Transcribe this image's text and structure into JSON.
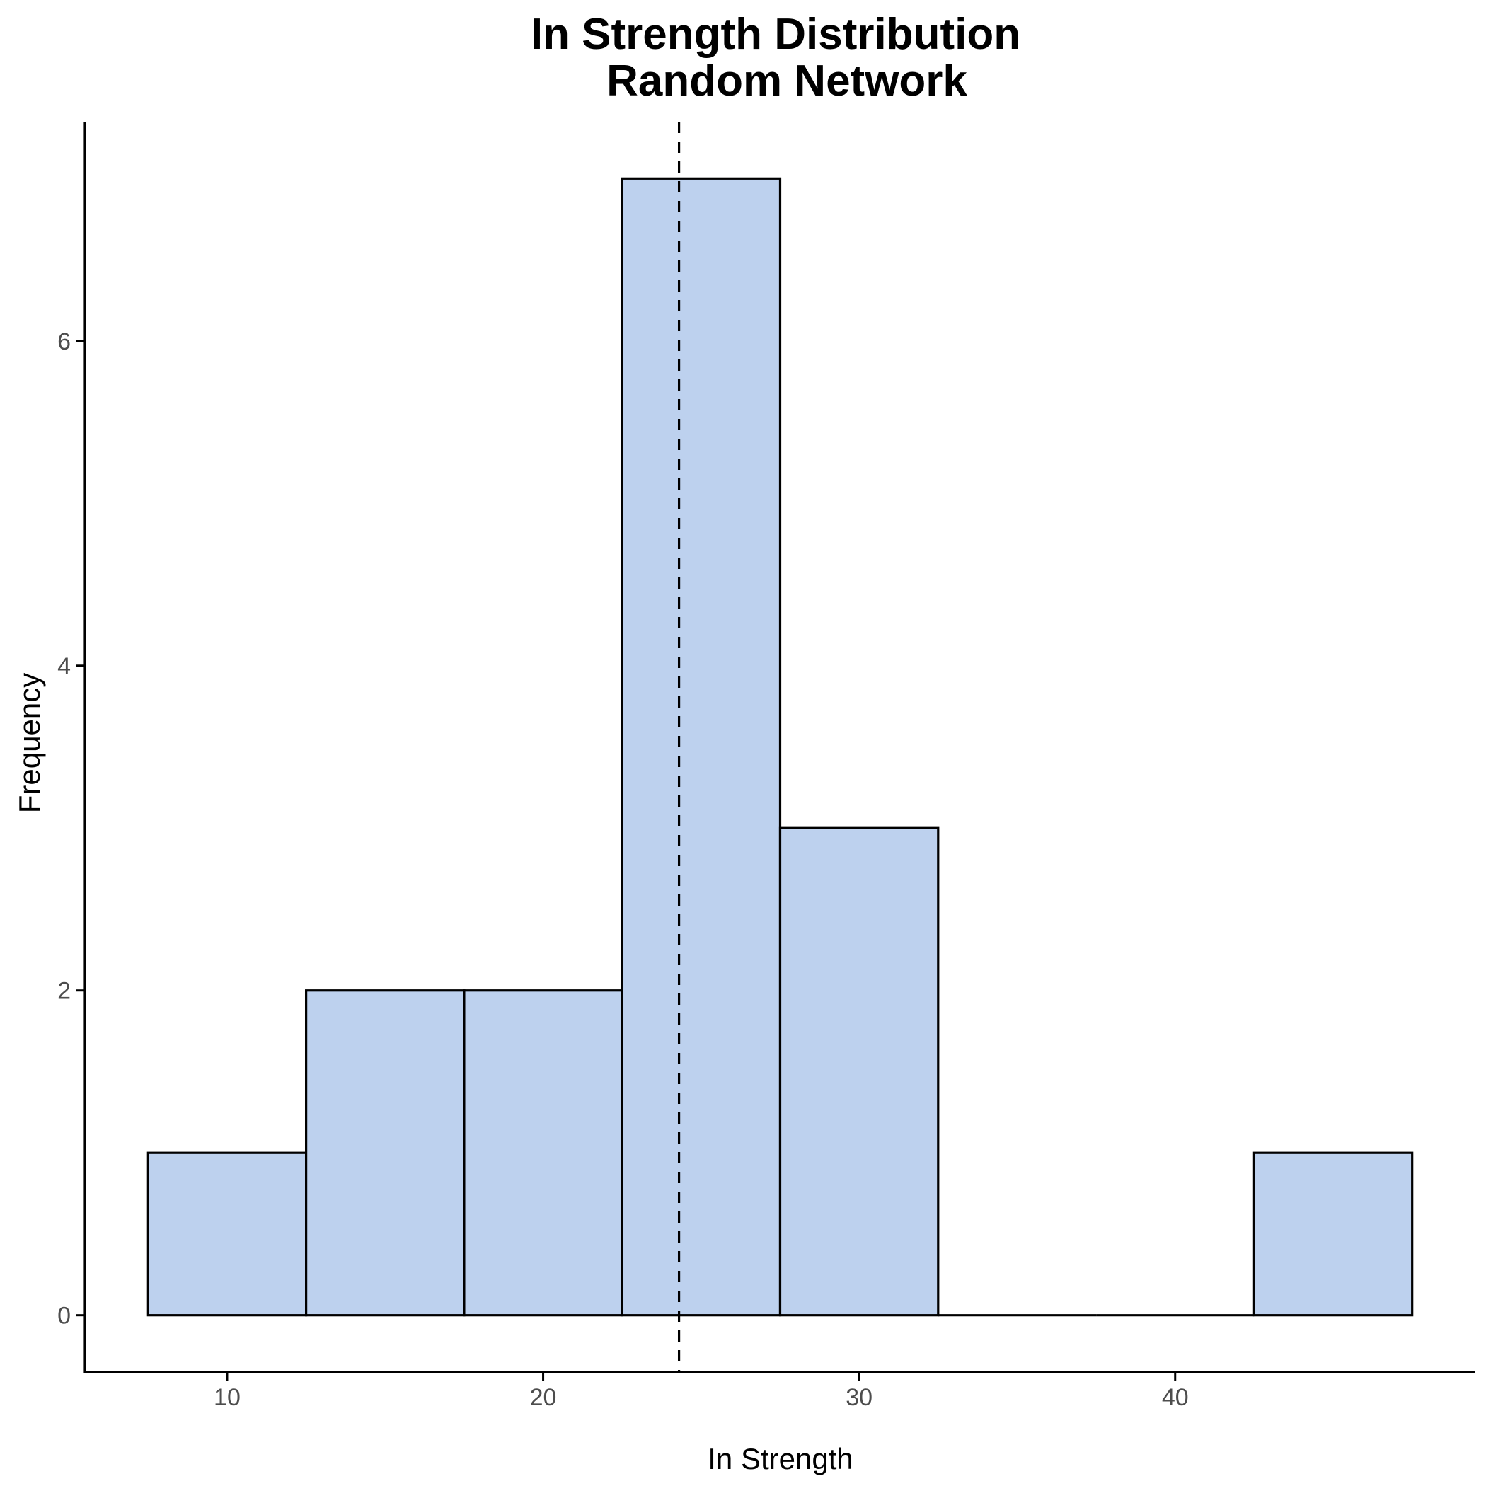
{
  "chart_data": {
    "type": "bar",
    "title_lines": [
      "In Strength Distribution",
      "Random Network"
    ],
    "xlabel": "In Strength",
    "ylabel": "Frequency",
    "bins": [
      {
        "x_start": 7.5,
        "x_end": 12.5,
        "count": 1
      },
      {
        "x_start": 12.5,
        "x_end": 17.5,
        "count": 2
      },
      {
        "x_start": 17.5,
        "x_end": 22.5,
        "count": 2
      },
      {
        "x_start": 22.5,
        "x_end": 27.5,
        "count": 7
      },
      {
        "x_start": 27.5,
        "x_end": 32.5,
        "count": 3
      },
      {
        "x_start": 32.5,
        "x_end": 37.5,
        "count": 0
      },
      {
        "x_start": 37.5,
        "x_end": 42.5,
        "count": 0
      },
      {
        "x_start": 42.5,
        "x_end": 47.5,
        "count": 1
      }
    ],
    "mean_line": {
      "x": 24.3,
      "style": "dashed"
    },
    "xlim": [
      5.5,
      49.5
    ],
    "ylim": [
      -0.35,
      7.35
    ],
    "x_ticks": [
      10,
      20,
      30,
      40
    ],
    "y_ticks": [
      0,
      2,
      4,
      6
    ],
    "grid": false,
    "colors": {
      "bar_fill": "#bdd1ee",
      "bar_stroke": "#000000",
      "axis": "#000000",
      "tick_label": "#4d4d4d"
    }
  }
}
